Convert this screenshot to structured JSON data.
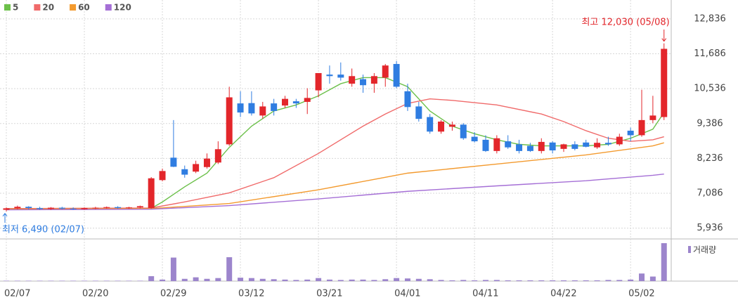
{
  "chart_data": {
    "type": "candlestick",
    "categories": [
      "02/07",
      null,
      null,
      null,
      null,
      null,
      null,
      "02/20",
      null,
      null,
      null,
      null,
      null,
      null,
      "02/29",
      null,
      null,
      null,
      null,
      null,
      null,
      "03/12",
      null,
      null,
      null,
      null,
      null,
      null,
      "03/21",
      null,
      null,
      null,
      null,
      null,
      null,
      "04/01",
      null,
      null,
      null,
      null,
      null,
      null,
      "04/11",
      null,
      null,
      null,
      null,
      null,
      null,
      "04/22",
      null,
      null,
      null,
      null,
      null,
      null,
      "05/02",
      null,
      null,
      null
    ],
    "open": [
      6540,
      6590,
      6640,
      6600,
      6570,
      6610,
      6580,
      6560,
      6600,
      6610,
      6630,
      6600,
      6620,
      6600,
      7520,
      8260,
      7880,
      7800,
      7950,
      8100,
      8700,
      10050,
      10060,
      9650,
      10050,
      9980,
      10120,
      10100,
      10480,
      11000,
      11000,
      10700,
      10850,
      10700,
      10900,
      11350,
      10450,
      9950,
      9600,
      9120,
      9280,
      9350,
      8950,
      8850,
      8480,
      8800,
      8700,
      8650,
      8480,
      8760,
      8550,
      8700,
      8760,
      8600,
      8750,
      8700,
      9150,
      9000,
      9500,
      9600
    ],
    "high": [
      6620,
      6680,
      6660,
      6640,
      6630,
      6640,
      6620,
      6620,
      6640,
      6650,
      6660,
      6640,
      6680,
      7620,
      7900,
      9500,
      8000,
      8160,
      8400,
      8800,
      10600,
      10450,
      10450,
      10100,
      10200,
      10300,
      10200,
      10550,
      11050,
      11300,
      11400,
      11200,
      11000,
      11050,
      11350,
      11450,
      10700,
      10100,
      9700,
      9500,
      9450,
      9400,
      9100,
      9000,
      9000,
      9000,
      8850,
      8750,
      8900,
      8800,
      8720,
      8800,
      8850,
      8900,
      8950,
      9050,
      9250,
      10500,
      10300,
      12030
    ],
    "low": [
      6490,
      6560,
      6560,
      6540,
      6540,
      6560,
      6540,
      6540,
      6560,
      6580,
      6580,
      6570,
      6590,
      6580,
      7480,
      7950,
      7600,
      7750,
      7900,
      8050,
      8650,
      9600,
      9650,
      9550,
      9650,
      9900,
      9900,
      9700,
      10250,
      10700,
      10800,
      10600,
      10400,
      10400,
      10600,
      10550,
      9800,
      9450,
      9050,
      9050,
      9150,
      8850,
      8760,
      8450,
      8400,
      8550,
      8400,
      8450,
      8400,
      8400,
      8450,
      8500,
      8600,
      8550,
      8650,
      8650,
      8800,
      8950,
      9400,
      9500
    ],
    "close": [
      6590,
      6640,
      6600,
      6570,
      6610,
      6580,
      6560,
      6600,
      6610,
      6630,
      6600,
      6620,
      6660,
      7580,
      7820,
      7960,
      7700,
      8050,
      8230,
      8540,
      10250,
      9750,
      9720,
      9950,
      9800,
      10200,
      10050,
      10230,
      11050,
      10950,
      10900,
      10950,
      10650,
      10950,
      11300,
      10600,
      9930,
      9540,
      9120,
      9450,
      9350,
      8900,
      8800,
      8480,
      8900,
      8600,
      8480,
      8480,
      8780,
      8500,
      8700,
      8550,
      8620,
      8750,
      8700,
      8950,
      9000,
      9500,
      9650,
      11850
    ],
    "up_color": "#e3262b",
    "down_color": "#2f7de1",
    "ylim": [
      5580,
      12950
    ],
    "yticks": [
      {
        "value": 12836,
        "label": "12,836"
      },
      {
        "value": 11686,
        "label": "11,686"
      },
      {
        "value": 10536,
        "label": "10,536"
      },
      {
        "value": 9386,
        "label": "9,386"
      },
      {
        "value": 8236,
        "label": "8,236"
      },
      {
        "value": 7086,
        "label": "7,086"
      },
      {
        "value": 5936,
        "label": "5,936"
      }
    ],
    "series": [
      {
        "name": "5",
        "color": "#6cc04a",
        "x": [
          0,
          13,
          14,
          16,
          18,
          20,
          22,
          24,
          26,
          28,
          30,
          32,
          34,
          36,
          38,
          40,
          42,
          44,
          46,
          48,
          50,
          52,
          54,
          56,
          58,
          59
        ],
        "values": [
          6580,
          6590,
          6800,
          7300,
          7750,
          8600,
          9300,
          9800,
          10000,
          10300,
          10700,
          10900,
          10900,
          10600,
          9800,
          9300,
          9050,
          8850,
          8700,
          8650,
          8650,
          8650,
          8700,
          8900,
          9200,
          9750
        ]
      },
      {
        "name": "20",
        "color": "#f06a6a",
        "x": [
          0,
          13,
          16,
          20,
          24,
          28,
          32,
          34,
          36,
          38,
          40,
          44,
          48,
          50,
          52,
          54,
          56,
          58,
          59
        ],
        "values": [
          6580,
          6600,
          6800,
          7100,
          7600,
          8400,
          9300,
          9700,
          10050,
          10200,
          10150,
          10000,
          9700,
          9450,
          9150,
          8900,
          8800,
          8850,
          8950
        ]
      },
      {
        "name": "60",
        "color": "#f39a2e",
        "x": [
          0,
          13,
          20,
          28,
          36,
          44,
          52,
          58,
          59
        ],
        "values": [
          6560,
          6580,
          6750,
          7200,
          7750,
          8050,
          8350,
          8650,
          8750
        ]
      },
      {
        "name": "120",
        "color": "#a56fd6",
        "x": [
          0,
          13,
          20,
          28,
          36,
          44,
          52,
          58,
          59
        ],
        "values": [
          6540,
          6560,
          6680,
          6900,
          7150,
          7330,
          7500,
          7680,
          7720
        ]
      }
    ],
    "volume": {
      "name": "거래량",
      "color": "#9c85cc",
      "ylim": [
        0,
        100
      ],
      "values": [
        1,
        1,
        1,
        1,
        1,
        1,
        1,
        1,
        1,
        1,
        1,
        1,
        1,
        13,
        4,
        62,
        6,
        10,
        6,
        8,
        63,
        9,
        8,
        6,
        5,
        4,
        3,
        4,
        8,
        4,
        3,
        4,
        4,
        3,
        5,
        8,
        7,
        6,
        5,
        3,
        2,
        3,
        2,
        3,
        3,
        2,
        2,
        2,
        2,
        2,
        2,
        2,
        2,
        2,
        3,
        3,
        4,
        20,
        12,
        100
      ]
    },
    "annotations": [
      {
        "text": "최고 12,030 (05/08)",
        "index": 59,
        "value": 12030
      },
      {
        "text": "최저 6,490 (02/07)",
        "index": 0,
        "value": 6490
      }
    ],
    "grid": true
  }
}
